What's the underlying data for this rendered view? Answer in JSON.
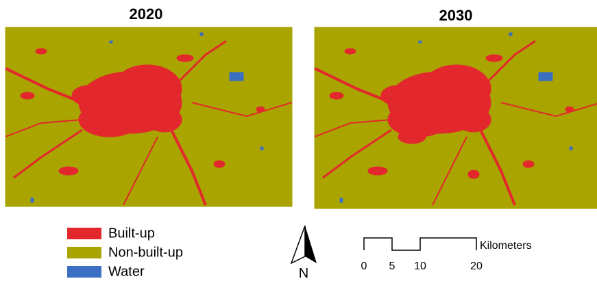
{
  "panels": [
    {
      "title": "2020"
    },
    {
      "title": "2030"
    }
  ],
  "legend": [
    {
      "label": "Built-up",
      "color": "#e2282c"
    },
    {
      "label": "Non-built-up",
      "color": "#a9a400"
    },
    {
      "label": "Water",
      "color": "#3b6fc2"
    }
  ],
  "north_arrow": {
    "label": "N"
  },
  "scale_bar": {
    "unit": "Kilometers",
    "ticks": [
      0,
      5,
      10,
      20
    ]
  }
}
